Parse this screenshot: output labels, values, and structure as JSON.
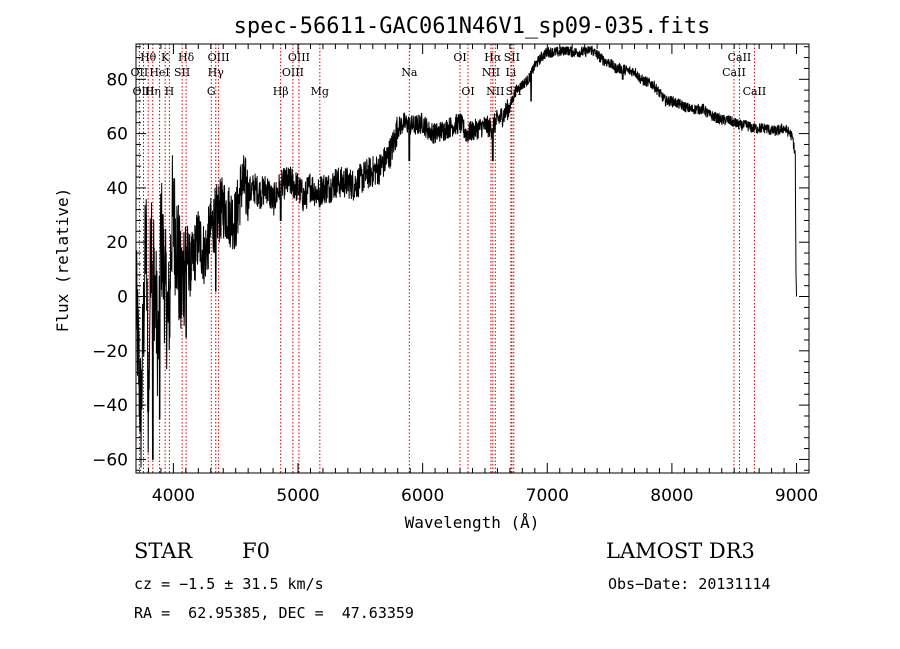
{
  "chart_data": {
    "type": "line",
    "title": "spec-56611-GAC061N46V1_sp09-035.fits",
    "xlabel": "Wavelength (Å)",
    "ylabel": "Flux (relative)",
    "xlim": [
      3700,
      9100
    ],
    "ylim": [
      -65,
      93
    ],
    "xticks": [
      4000,
      5000,
      6000,
      7000,
      8000,
      9000
    ],
    "xtick_labels": [
      "4000",
      "5000",
      "6000",
      "7000",
      "8000",
      "9000"
    ],
    "yticks": [
      -60,
      -40,
      -20,
      0,
      20,
      40,
      60,
      80
    ],
    "ytick_labels": [
      "−60",
      "−40",
      "−20",
      "0",
      "20",
      "40",
      "60",
      "80"
    ],
    "series": [
      {
        "name": "spectrum",
        "color": "#000000",
        "anchors": [
          [
            3700,
            0
          ],
          [
            3740,
            -45
          ],
          [
            3780,
            25
          ],
          [
            3800,
            -45
          ],
          [
            3820,
            30
          ],
          [
            3850,
            5
          ],
          [
            3880,
            -20
          ],
          [
            3900,
            25
          ],
          [
            3930,
            5
          ],
          [
            3960,
            -10
          ],
          [
            3990,
            30
          ],
          [
            4030,
            20
          ],
          [
            4060,
            0
          ],
          [
            4100,
            18
          ],
          [
            4140,
            10
          ],
          [
            4200,
            22
          ],
          [
            4250,
            15
          ],
          [
            4300,
            25
          ],
          [
            4350,
            30
          ],
          [
            4400,
            33
          ],
          [
            4450,
            30
          ],
          [
            4500,
            28
          ],
          [
            4550,
            42
          ],
          [
            4600,
            38
          ],
          [
            4650,
            40
          ],
          [
            4700,
            38
          ],
          [
            4750,
            40
          ],
          [
            4800,
            35
          ],
          [
            4850,
            40
          ],
          [
            4900,
            42
          ],
          [
            4950,
            42
          ],
          [
            5000,
            40
          ],
          [
            5050,
            36
          ],
          [
            5100,
            41
          ],
          [
            5150,
            38
          ],
          [
            5200,
            40
          ],
          [
            5250,
            40
          ],
          [
            5300,
            42
          ],
          [
            5350,
            42
          ],
          [
            5400,
            42
          ],
          [
            5450,
            41
          ],
          [
            5500,
            43
          ],
          [
            5550,
            45
          ],
          [
            5600,
            46
          ],
          [
            5650,
            47
          ],
          [
            5700,
            50
          ],
          [
            5750,
            54
          ],
          [
            5800,
            62
          ],
          [
            5850,
            64
          ],
          [
            5900,
            63
          ],
          [
            5950,
            63
          ],
          [
            6000,
            64
          ],
          [
            6050,
            61
          ],
          [
            6100,
            60
          ],
          [
            6150,
            61
          ],
          [
            6200,
            62
          ],
          [
            6250,
            63
          ],
          [
            6300,
            64
          ],
          [
            6350,
            60
          ],
          [
            6400,
            61
          ],
          [
            6450,
            62
          ],
          [
            6500,
            63
          ],
          [
            6550,
            62
          ],
          [
            6600,
            65
          ],
          [
            6650,
            67
          ],
          [
            6700,
            70
          ],
          [
            6750,
            76
          ],
          [
            6800,
            78
          ],
          [
            6850,
            80
          ],
          [
            6900,
            85
          ],
          [
            6950,
            88
          ],
          [
            7000,
            90
          ],
          [
            7050,
            90
          ],
          [
            7100,
            90
          ],
          [
            7150,
            91
          ],
          [
            7200,
            90
          ],
          [
            7250,
            90
          ],
          [
            7300,
            90
          ],
          [
            7350,
            91
          ],
          [
            7400,
            89
          ],
          [
            7450,
            87
          ],
          [
            7500,
            86
          ],
          [
            7550,
            84
          ],
          [
            7600,
            84
          ],
          [
            7650,
            83
          ],
          [
            7700,
            83
          ],
          [
            7750,
            80
          ],
          [
            7800,
            79
          ],
          [
            7850,
            78
          ],
          [
            7900,
            75
          ],
          [
            7950,
            72
          ],
          [
            8000,
            72
          ],
          [
            8050,
            71
          ],
          [
            8100,
            70
          ],
          [
            8150,
            69
          ],
          [
            8200,
            69
          ],
          [
            8250,
            69
          ],
          [
            8300,
            67
          ],
          [
            8350,
            66
          ],
          [
            8400,
            65
          ],
          [
            8450,
            65
          ],
          [
            8500,
            64
          ],
          [
            8550,
            63
          ],
          [
            8600,
            63
          ],
          [
            8650,
            62
          ],
          [
            8700,
            62
          ],
          [
            8750,
            62
          ],
          [
            8800,
            61
          ],
          [
            8850,
            61
          ],
          [
            8900,
            62
          ],
          [
            8950,
            60
          ],
          [
            8970,
            58
          ],
          [
            8990,
            52
          ],
          [
            8995,
            10
          ],
          [
            9000,
            0
          ]
        ],
        "features": [
          [
            3835,
            -60
          ],
          [
            3890,
            -45
          ],
          [
            3970,
            -15
          ],
          [
            4102,
            -15
          ],
          [
            4340,
            2
          ],
          [
            4861,
            28
          ],
          [
            5173,
            33
          ],
          [
            5893,
            50
          ],
          [
            6563,
            50
          ],
          [
            6870,
            72
          ],
          [
            7605,
            80
          ]
        ]
      }
    ],
    "lines": [
      {
        "label": "Hθ",
        "wave": 3798,
        "row": 0
      },
      {
        "label": "OII",
        "wave": 3727,
        "row": 1
      },
      {
        "label": "OIII",
        "wave": 3760,
        "row": 2
      },
      {
        "label": "Hη",
        "wave": 3835,
        "row": 2
      },
      {
        "label": "HeI",
        "wave": 3889,
        "row": 1
      },
      {
        "label": "K",
        "wave": 3934,
        "row": 0
      },
      {
        "label": "H",
        "wave": 3968,
        "row": 2
      },
      {
        "label": "SII",
        "wave": 4070,
        "row": 1
      },
      {
        "label": "Hδ",
        "wave": 4102,
        "row": 0
      },
      {
        "label": "G",
        "wave": 4304,
        "row": 2
      },
      {
        "label": "Hγ",
        "wave": 4340,
        "row": 1
      },
      {
        "label": "OIII",
        "wave": 4363,
        "row": 0
      },
      {
        "label": "Hβ",
        "wave": 4861,
        "row": 2
      },
      {
        "label": "OIII",
        "wave": 4959,
        "row": 1
      },
      {
        "label": "OIII",
        "wave": 5007,
        "row": 0
      },
      {
        "label": "Mg",
        "wave": 5175,
        "row": 2
      },
      {
        "label": "Na",
        "wave": 5893,
        "row": 1
      },
      {
        "label": "OI",
        "wave": 6300,
        "row": 0
      },
      {
        "label": "OI",
        "wave": 6364,
        "row": 2
      },
      {
        "label": "NII",
        "wave": 6548,
        "row": 1
      },
      {
        "label": "Hα",
        "wave": 6563,
        "row": 0
      },
      {
        "label": "NII",
        "wave": 6583,
        "row": 2
      },
      {
        "label": "Li",
        "wave": 6708,
        "row": 1
      },
      {
        "label": "SII",
        "wave": 6716,
        "row": 0
      },
      {
        "label": "SII",
        "wave": 6731,
        "row": 2
      },
      {
        "label": "CaII",
        "wave": 8498,
        "row": 1
      },
      {
        "label": "CaII",
        "wave": 8542,
        "row": 0
      },
      {
        "label": "CaII",
        "wave": 8662,
        "row": 2
      }
    ],
    "line_color": "#cc0000"
  },
  "info": {
    "class": "STAR",
    "subclass": "F0",
    "survey": "LAMOST DR3",
    "cz": "cz = −1.5 ± 31.5 km/s",
    "obs_date": "Obs−Date: 20131114",
    "coords": "RA =  62.95385, DEC =  47.63359"
  }
}
